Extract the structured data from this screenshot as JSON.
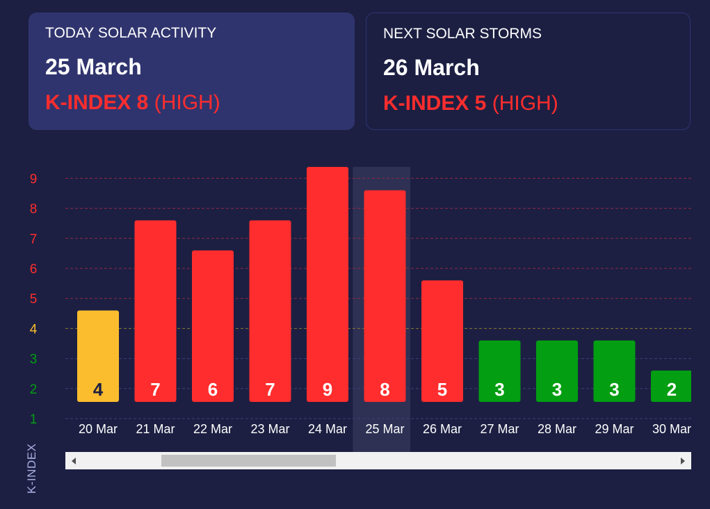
{
  "cards": {
    "today": {
      "title": "TODAY SOLAR ACTIVITY",
      "date": "25 March",
      "kindex": "K-INDEX 8",
      "level": "(HIGH)"
    },
    "next": {
      "title": "NEXT SOLAR STORMS",
      "date": "26 March",
      "kindex": "K-INDEX 5",
      "level": "(HIGH)"
    }
  },
  "chart_data": {
    "type": "bar",
    "ylabel": "K-INDEX",
    "yticks": [
      1,
      2,
      3,
      4,
      5,
      6,
      7,
      8,
      9
    ],
    "ylim": [
      1,
      9
    ],
    "grid": true,
    "highlighted_category": "25 Mar",
    "categories": [
      "20 Mar",
      "21 Mar",
      "22 Mar",
      "23 Mar",
      "24 Mar",
      "25 Mar",
      "26 Mar",
      "27 Mar",
      "28 Mar",
      "29 Mar",
      "30 Mar"
    ],
    "values": [
      4,
      7,
      6,
      7,
      9,
      8,
      5,
      3,
      3,
      3,
      2
    ],
    "colors": {
      "low": "#039e12",
      "moderate": "#fbbd2e",
      "high": "#ff2d2d",
      "highlight": "#2e3154"
    }
  },
  "scrollbar": {
    "position_fraction": 0.17
  }
}
